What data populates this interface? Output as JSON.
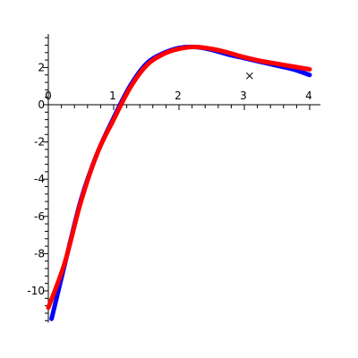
{
  "chart_data": {
    "type": "line",
    "title": "",
    "xlabel": "",
    "ylabel": "",
    "xlim": [
      0,
      4
    ],
    "ylim": [
      -11.7,
      3.8
    ],
    "grid": false,
    "x_ticks": [
      0,
      1,
      2,
      3,
      4
    ],
    "x_tick_labels": [
      "0",
      "1",
      "2",
      "3",
      "4"
    ],
    "y_ticks": [
      -10,
      -8,
      -6,
      -4,
      -2,
      0,
      2
    ],
    "y_tick_labels": [
      "-10",
      "-8",
      "-6",
      "-4",
      "-2",
      "0",
      "2"
    ],
    "series": [
      {
        "color": "#0000ff",
        "x": [
          0.05,
          0.25,
          0.5,
          0.75,
          1.0,
          1.25,
          1.5,
          1.75,
          2.0,
          2.25,
          2.5,
          2.75,
          3.0,
          3.25,
          3.5,
          3.75,
          4.0
        ],
        "y": [
          -11.5,
          -8.6,
          -5.1,
          -2.6,
          -0.7,
          1.0,
          2.2,
          2.75,
          3.05,
          3.1,
          2.95,
          2.7,
          2.5,
          2.3,
          2.1,
          1.9,
          1.6
        ]
      },
      {
        "color": "#ff0000",
        "x": [
          0.0,
          0.25,
          0.5,
          0.75,
          1.0,
          1.25,
          1.5,
          1.75,
          2.0,
          2.25,
          2.5,
          2.75,
          3.0,
          3.25,
          3.5,
          3.75,
          4.0
        ],
        "y": [
          -10.9,
          -8.5,
          -5.2,
          -2.6,
          -0.8,
          0.9,
          2.1,
          2.7,
          3.0,
          3.1,
          3.0,
          2.8,
          2.55,
          2.35,
          2.2,
          2.05,
          1.9
        ]
      }
    ],
    "markers": [
      {
        "symbol": "x",
        "x": 3.08,
        "y": 1.55
      }
    ]
  }
}
